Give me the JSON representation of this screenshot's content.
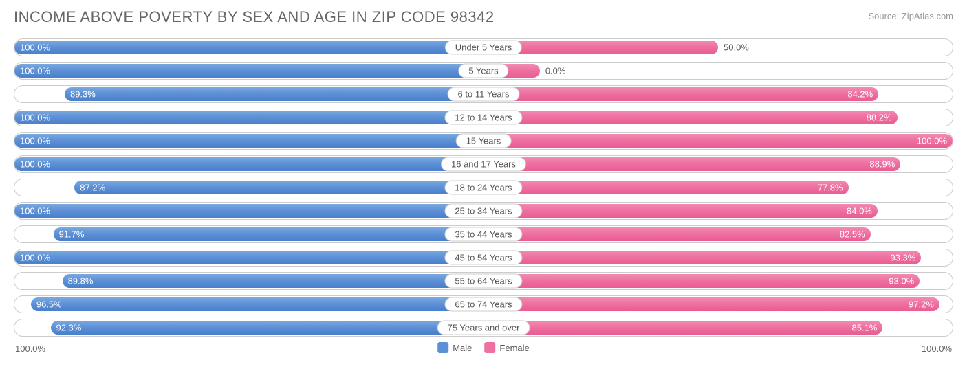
{
  "title": "INCOME ABOVE POVERTY BY SEX AND AGE IN ZIP CODE 98342",
  "source": "Source: ZipAtlas.com",
  "colors": {
    "male": "#5b8fd6",
    "female": "#ee6fa0",
    "border": "#cccccc",
    "text": "#666666"
  },
  "axis": {
    "left": "100.0%",
    "right": "100.0%"
  },
  "legend": {
    "male": "Male",
    "female": "Female"
  },
  "rows": [
    {
      "age": "Under 5 Years",
      "male": 100.0,
      "female": 50.0,
      "female_outside": true
    },
    {
      "age": "5 Years",
      "male": 100.0,
      "female": 0.0,
      "female_outside": true,
      "female_stub": 12
    },
    {
      "age": "6 to 11 Years",
      "male": 89.3,
      "female": 84.2
    },
    {
      "age": "12 to 14 Years",
      "male": 100.0,
      "female": 88.2
    },
    {
      "age": "15 Years",
      "male": 100.0,
      "female": 100.0
    },
    {
      "age": "16 and 17 Years",
      "male": 100.0,
      "female": 88.9
    },
    {
      "age": "18 to 24 Years",
      "male": 87.2,
      "female": 77.8
    },
    {
      "age": "25 to 34 Years",
      "male": 100.0,
      "female": 84.0
    },
    {
      "age": "35 to 44 Years",
      "male": 91.7,
      "female": 82.5
    },
    {
      "age": "45 to 54 Years",
      "male": 100.0,
      "female": 93.3
    },
    {
      "age": "55 to 64 Years",
      "male": 89.8,
      "female": 93.0
    },
    {
      "age": "65 to 74 Years",
      "male": 96.5,
      "female": 97.2
    },
    {
      "age": "75 Years and over",
      "male": 92.3,
      "female": 85.1
    }
  ]
}
